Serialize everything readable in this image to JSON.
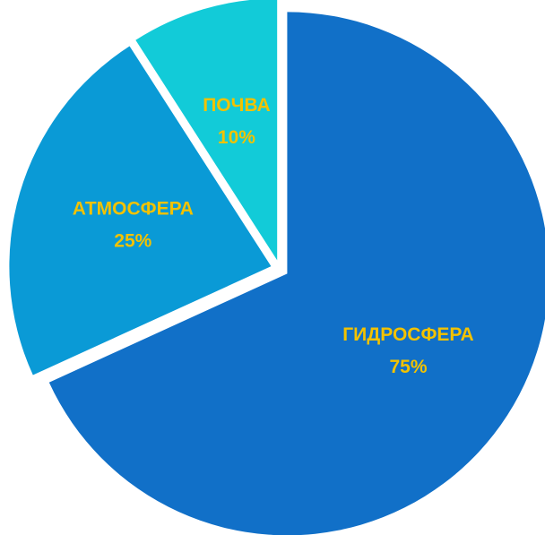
{
  "chart_data": {
    "type": "pie",
    "categories": [
      "ГИДРОСФЕРА",
      "АТМОСФЕРА",
      "ПОЧВА"
    ],
    "values": [
      75,
      25,
      10
    ],
    "value_labels": [
      "75%",
      "25%",
      "10%"
    ],
    "colors": [
      "#1170c8",
      "#0a9ad6",
      "#12cbd8"
    ],
    "label_color": "#f2c200"
  }
}
